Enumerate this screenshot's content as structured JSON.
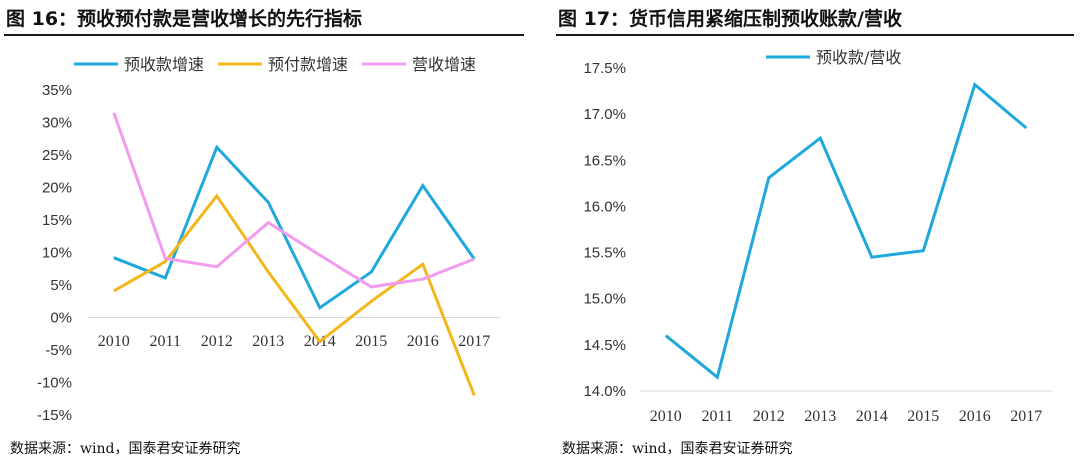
{
  "colors": {
    "series1": "#1FA8DC",
    "series2": "#F4B71B",
    "series3": "#F29BEF"
  },
  "chart_data": [
    {
      "type": "line",
      "title": "图 16：预收预付款是营收增长的先行指标",
      "source": "数据来源：wind，国泰君安证券研究",
      "categories": [
        "2010",
        "2011",
        "2012",
        "2013",
        "2014",
        "2015",
        "2016",
        "2017"
      ],
      "series": [
        {
          "name": "预收款增速",
          "values": [
            9.2,
            6.1,
            26.2,
            17.7,
            1.5,
            7.0,
            20.3,
            9.0
          ]
        },
        {
          "name": "预付款增速",
          "values": [
            4.1,
            8.6,
            18.7,
            7.0,
            -3.7,
            2.5,
            8.2,
            -12.0
          ]
        },
        {
          "name": "营收增速",
          "values": [
            31.5,
            9.1,
            7.8,
            14.6,
            9.6,
            4.7,
            5.9,
            9.0
          ]
        }
      ],
      "ylim": [
        -15,
        35
      ],
      "yticks": [
        "-15%",
        "-10%",
        "-5%",
        "0%",
        "5%",
        "10%",
        "15%",
        "20%",
        "25%",
        "30%",
        "35%"
      ],
      "legend": "top"
    },
    {
      "type": "line",
      "title": "图 17：货币信用紧缩压制预收账款/营收",
      "source": "数据来源：wind，国泰君安证券研究",
      "categories": [
        "2010",
        "2011",
        "2012",
        "2013",
        "2014",
        "2015",
        "2016",
        "2017"
      ],
      "series": [
        {
          "name": "预收款/营收",
          "values": [
            14.6,
            14.15,
            16.31,
            16.74,
            15.45,
            15.52,
            17.32,
            16.85
          ]
        }
      ],
      "ylim": [
        14.0,
        17.5
      ],
      "yticks": [
        "14.0%",
        "14.5%",
        "15.0%",
        "15.5%",
        "16.0%",
        "16.5%",
        "17.0%",
        "17.5%"
      ],
      "legend": "top"
    }
  ]
}
